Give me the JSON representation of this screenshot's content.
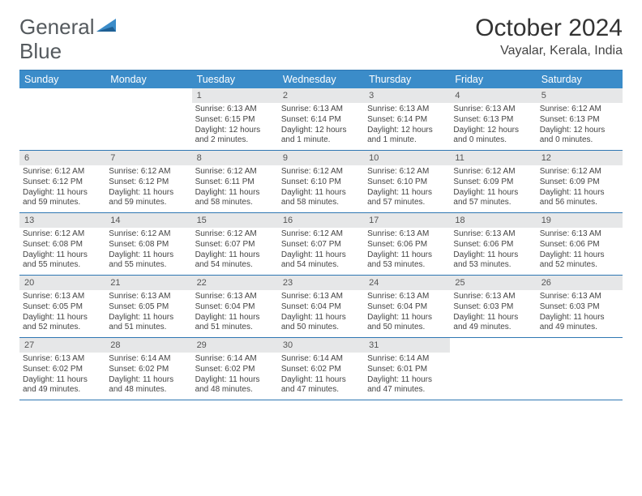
{
  "logo": {
    "text1": "General",
    "text2": "Blue"
  },
  "title": "October 2024",
  "subtitle": "Vayalar, Kerala, India",
  "colors": {
    "header_bg": "#3b8cc9",
    "border": "#2f77b3",
    "date_bg": "#e6e7e8",
    "text": "#444444"
  },
  "day_names": [
    "Sunday",
    "Monday",
    "Tuesday",
    "Wednesday",
    "Thursday",
    "Friday",
    "Saturday"
  ],
  "weeks": [
    [
      {
        "empty": true
      },
      {
        "empty": true
      },
      {
        "date": "1",
        "sunrise": "6:13 AM",
        "sunset": "6:15 PM",
        "daylight": "12 hours and 2 minutes."
      },
      {
        "date": "2",
        "sunrise": "6:13 AM",
        "sunset": "6:14 PM",
        "daylight": "12 hours and 1 minute."
      },
      {
        "date": "3",
        "sunrise": "6:13 AM",
        "sunset": "6:14 PM",
        "daylight": "12 hours and 1 minute."
      },
      {
        "date": "4",
        "sunrise": "6:13 AM",
        "sunset": "6:13 PM",
        "daylight": "12 hours and 0 minutes."
      },
      {
        "date": "5",
        "sunrise": "6:12 AM",
        "sunset": "6:13 PM",
        "daylight": "12 hours and 0 minutes."
      }
    ],
    [
      {
        "date": "6",
        "sunrise": "6:12 AM",
        "sunset": "6:12 PM",
        "daylight": "11 hours and 59 minutes."
      },
      {
        "date": "7",
        "sunrise": "6:12 AM",
        "sunset": "6:12 PM",
        "daylight": "11 hours and 59 minutes."
      },
      {
        "date": "8",
        "sunrise": "6:12 AM",
        "sunset": "6:11 PM",
        "daylight": "11 hours and 58 minutes."
      },
      {
        "date": "9",
        "sunrise": "6:12 AM",
        "sunset": "6:10 PM",
        "daylight": "11 hours and 58 minutes."
      },
      {
        "date": "10",
        "sunrise": "6:12 AM",
        "sunset": "6:10 PM",
        "daylight": "11 hours and 57 minutes."
      },
      {
        "date": "11",
        "sunrise": "6:12 AM",
        "sunset": "6:09 PM",
        "daylight": "11 hours and 57 minutes."
      },
      {
        "date": "12",
        "sunrise": "6:12 AM",
        "sunset": "6:09 PM",
        "daylight": "11 hours and 56 minutes."
      }
    ],
    [
      {
        "date": "13",
        "sunrise": "6:12 AM",
        "sunset": "6:08 PM",
        "daylight": "11 hours and 55 minutes."
      },
      {
        "date": "14",
        "sunrise": "6:12 AM",
        "sunset": "6:08 PM",
        "daylight": "11 hours and 55 minutes."
      },
      {
        "date": "15",
        "sunrise": "6:12 AM",
        "sunset": "6:07 PM",
        "daylight": "11 hours and 54 minutes."
      },
      {
        "date": "16",
        "sunrise": "6:12 AM",
        "sunset": "6:07 PM",
        "daylight": "11 hours and 54 minutes."
      },
      {
        "date": "17",
        "sunrise": "6:13 AM",
        "sunset": "6:06 PM",
        "daylight": "11 hours and 53 minutes."
      },
      {
        "date": "18",
        "sunrise": "6:13 AM",
        "sunset": "6:06 PM",
        "daylight": "11 hours and 53 minutes."
      },
      {
        "date": "19",
        "sunrise": "6:13 AM",
        "sunset": "6:06 PM",
        "daylight": "11 hours and 52 minutes."
      }
    ],
    [
      {
        "date": "20",
        "sunrise": "6:13 AM",
        "sunset": "6:05 PM",
        "daylight": "11 hours and 52 minutes."
      },
      {
        "date": "21",
        "sunrise": "6:13 AM",
        "sunset": "6:05 PM",
        "daylight": "11 hours and 51 minutes."
      },
      {
        "date": "22",
        "sunrise": "6:13 AM",
        "sunset": "6:04 PM",
        "daylight": "11 hours and 51 minutes."
      },
      {
        "date": "23",
        "sunrise": "6:13 AM",
        "sunset": "6:04 PM",
        "daylight": "11 hours and 50 minutes."
      },
      {
        "date": "24",
        "sunrise": "6:13 AM",
        "sunset": "6:04 PM",
        "daylight": "11 hours and 50 minutes."
      },
      {
        "date": "25",
        "sunrise": "6:13 AM",
        "sunset": "6:03 PM",
        "daylight": "11 hours and 49 minutes."
      },
      {
        "date": "26",
        "sunrise": "6:13 AM",
        "sunset": "6:03 PM",
        "daylight": "11 hours and 49 minutes."
      }
    ],
    [
      {
        "date": "27",
        "sunrise": "6:13 AM",
        "sunset": "6:02 PM",
        "daylight": "11 hours and 49 minutes."
      },
      {
        "date": "28",
        "sunrise": "6:14 AM",
        "sunset": "6:02 PM",
        "daylight": "11 hours and 48 minutes."
      },
      {
        "date": "29",
        "sunrise": "6:14 AM",
        "sunset": "6:02 PM",
        "daylight": "11 hours and 48 minutes."
      },
      {
        "date": "30",
        "sunrise": "6:14 AM",
        "sunset": "6:02 PM",
        "daylight": "11 hours and 47 minutes."
      },
      {
        "date": "31",
        "sunrise": "6:14 AM",
        "sunset": "6:01 PM",
        "daylight": "11 hours and 47 minutes."
      },
      {
        "empty": true
      },
      {
        "empty": true
      }
    ]
  ]
}
